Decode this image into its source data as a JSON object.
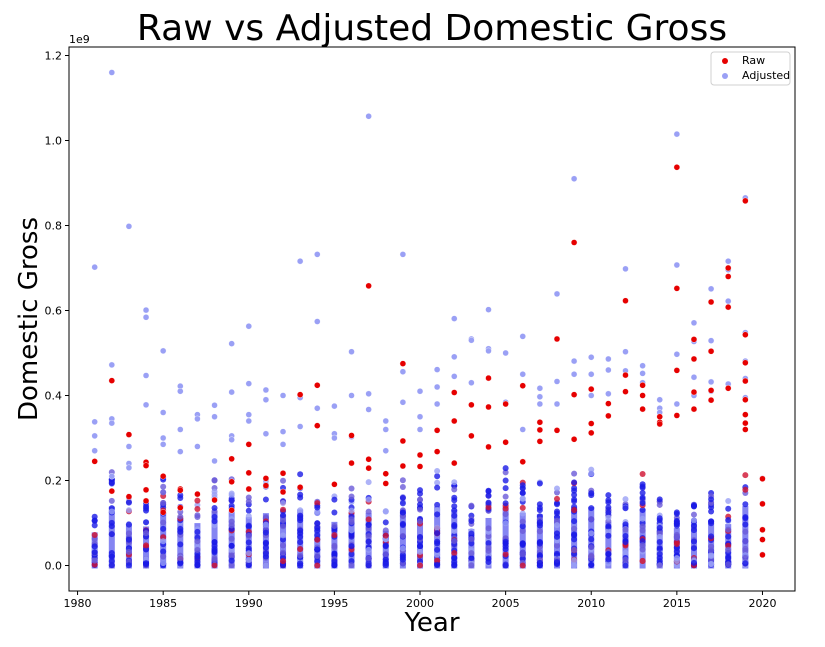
{
  "chart_data": {
    "type": "scatter",
    "title": "Raw vs Adjusted Domestic Gross",
    "xlabel": "Year",
    "ylabel": "Domestic Gross",
    "offset_text": "1e9",
    "xlim": [
      1979.5,
      2021.9
    ],
    "ylim": [
      -60000000,
      1220000000
    ],
    "x_ticks": [
      1980,
      1985,
      1990,
      1995,
      2000,
      2005,
      2010,
      2015,
      2020
    ],
    "x_tick_labels": [
      "1980",
      "1985",
      "1990",
      "1995",
      "2000",
      "2005",
      "2010",
      "2015",
      "2020"
    ],
    "y_ticks": [
      0,
      200000000,
      400000000,
      600000000,
      800000000,
      1000000000,
      1200000000
    ],
    "y_tick_labels": [
      "0.0",
      "0.2",
      "0.4",
      "0.6",
      "0.8",
      "1.0",
      "1.2"
    ],
    "grid": false,
    "legend_position": "top-right",
    "series": [
      {
        "name": "Raw",
        "color": "#e60000",
        "points": [
          [
            1981,
            245000000
          ],
          [
            1982,
            435000000
          ],
          [
            1982,
            175000000
          ],
          [
            1983,
            308000000
          ],
          [
            1983,
            162000000
          ],
          [
            1984,
            243000000
          ],
          [
            1984,
            235000000
          ],
          [
            1984,
            178000000
          ],
          [
            1984,
            152000000
          ],
          [
            1985,
            210000000
          ],
          [
            1985,
            125000000
          ],
          [
            1986,
            180000000
          ],
          [
            1986,
            177000000
          ],
          [
            1986,
            136000000
          ],
          [
            1987,
            168000000
          ],
          [
            1988,
            154000000
          ],
          [
            1989,
            251000000
          ],
          [
            1989,
            197000000
          ],
          [
            1989,
            130000000
          ],
          [
            1990,
            285000000
          ],
          [
            1990,
            218000000
          ],
          [
            1990,
            180000000
          ],
          [
            1991,
            205000000
          ],
          [
            1991,
            188000000
          ],
          [
            1992,
            217000000
          ],
          [
            1992,
            173000000
          ],
          [
            1993,
            402000000
          ],
          [
            1993,
            184000000
          ],
          [
            1994,
            424000000
          ],
          [
            1994,
            329000000
          ],
          [
            1995,
            191000000
          ],
          [
            1996,
            306000000
          ],
          [
            1996,
            241000000
          ],
          [
            1997,
            658000000
          ],
          [
            1997,
            250000000
          ],
          [
            1997,
            229000000
          ],
          [
            1998,
            216000000
          ],
          [
            1998,
            193000000
          ],
          [
            1999,
            475000000
          ],
          [
            1999,
            293000000
          ],
          [
            1999,
            234000000
          ],
          [
            2000,
            260000000
          ],
          [
            2000,
            233000000
          ],
          [
            2001,
            318000000
          ],
          [
            2001,
            268000000
          ],
          [
            2002,
            407000000
          ],
          [
            2002,
            340000000
          ],
          [
            2002,
            241000000
          ],
          [
            2003,
            378000000
          ],
          [
            2003,
            305000000
          ],
          [
            2004,
            441000000
          ],
          [
            2004,
            373000000
          ],
          [
            2004,
            279000000
          ],
          [
            2005,
            380000000
          ],
          [
            2005,
            290000000
          ],
          [
            2006,
            423000000
          ],
          [
            2006,
            244000000
          ],
          [
            2007,
            337000000
          ],
          [
            2007,
            319000000
          ],
          [
            2007,
            292000000
          ],
          [
            2008,
            533000000
          ],
          [
            2008,
            318000000
          ],
          [
            2009,
            760000000
          ],
          [
            2009,
            402000000
          ],
          [
            2009,
            297000000
          ],
          [
            2010,
            415000000
          ],
          [
            2010,
            334000000
          ],
          [
            2010,
            312000000
          ],
          [
            2011,
            381000000
          ],
          [
            2011,
            352000000
          ],
          [
            2012,
            623000000
          ],
          [
            2012,
            448000000
          ],
          [
            2012,
            409000000
          ],
          [
            2013,
            424000000
          ],
          [
            2013,
            400000000
          ],
          [
            2013,
            368000000
          ],
          [
            2014,
            350000000
          ],
          [
            2014,
            337000000
          ],
          [
            2014,
            333000000
          ],
          [
            2015,
            937000000
          ],
          [
            2015,
            652000000
          ],
          [
            2015,
            459000000
          ],
          [
            2015,
            353000000
          ],
          [
            2016,
            532000000
          ],
          [
            2016,
            486000000
          ],
          [
            2016,
            408000000
          ],
          [
            2016,
            368000000
          ],
          [
            2017,
            620000000
          ],
          [
            2017,
            504000000
          ],
          [
            2017,
            412000000
          ],
          [
            2017,
            389000000
          ],
          [
            2018,
            700000000
          ],
          [
            2018,
            680000000
          ],
          [
            2018,
            608000000
          ],
          [
            2018,
            417000000
          ],
          [
            2019,
            858000000
          ],
          [
            2019,
            543000000
          ],
          [
            2019,
            477000000
          ],
          [
            2019,
            434000000
          ],
          [
            2019,
            390000000
          ],
          [
            2019,
            355000000
          ],
          [
            2019,
            335000000
          ],
          [
            2019,
            320000000
          ],
          [
            2020,
            204000000
          ],
          [
            2020,
            145000000
          ],
          [
            2020,
            84000000
          ],
          [
            2020,
            61000000
          ],
          [
            2020,
            25000000
          ]
        ]
      },
      {
        "name": "Adjusted",
        "color": "#9aa0f5",
        "points": [
          [
            1981,
            702000000
          ],
          [
            1981,
            338000000
          ],
          [
            1981,
            305000000
          ],
          [
            1981,
            270000000
          ],
          [
            1982,
            1160000000
          ],
          [
            1982,
            472000000
          ],
          [
            1982,
            345000000
          ],
          [
            1982,
            335000000
          ],
          [
            1982,
            210000000
          ],
          [
            1983,
            798000000
          ],
          [
            1983,
            280000000
          ],
          [
            1983,
            240000000
          ],
          [
            1983,
            230000000
          ],
          [
            1984,
            601000000
          ],
          [
            1984,
            584000000
          ],
          [
            1984,
            447000000
          ],
          [
            1984,
            378000000
          ],
          [
            1985,
            505000000
          ],
          [
            1985,
            360000000
          ],
          [
            1985,
            300000000
          ],
          [
            1985,
            285000000
          ],
          [
            1986,
            422000000
          ],
          [
            1986,
            410000000
          ],
          [
            1986,
            320000000
          ],
          [
            1986,
            268000000
          ],
          [
            1987,
            355000000
          ],
          [
            1987,
            345000000
          ],
          [
            1987,
            280000000
          ],
          [
            1988,
            377000000
          ],
          [
            1988,
            350000000
          ],
          [
            1988,
            246000000
          ],
          [
            1989,
            522000000
          ],
          [
            1989,
            408000000
          ],
          [
            1989,
            305000000
          ],
          [
            1989,
            296000000
          ],
          [
            1990,
            563000000
          ],
          [
            1990,
            428000000
          ],
          [
            1990,
            355000000
          ],
          [
            1990,
            340000000
          ],
          [
            1991,
            413000000
          ],
          [
            1991,
            390000000
          ],
          [
            1991,
            310000000
          ],
          [
            1992,
            400000000
          ],
          [
            1992,
            315000000
          ],
          [
            1992,
            285000000
          ],
          [
            1993,
            716000000
          ],
          [
            1993,
            395000000
          ],
          [
            1993,
            327000000
          ],
          [
            1994,
            732000000
          ],
          [
            1994,
            574000000
          ],
          [
            1994,
            370000000
          ],
          [
            1995,
            375000000
          ],
          [
            1995,
            310000000
          ],
          [
            1995,
            300000000
          ],
          [
            1996,
            503000000
          ],
          [
            1996,
            400000000
          ],
          [
            1996,
            303000000
          ],
          [
            1997,
            1057000000
          ],
          [
            1997,
            404000000
          ],
          [
            1997,
            367000000
          ],
          [
            1998,
            340000000
          ],
          [
            1998,
            320000000
          ],
          [
            1998,
            270000000
          ],
          [
            1999,
            732000000
          ],
          [
            1999,
            456000000
          ],
          [
            1999,
            384000000
          ],
          [
            2000,
            410000000
          ],
          [
            2000,
            350000000
          ],
          [
            2000,
            320000000
          ],
          [
            2001,
            461000000
          ],
          [
            2001,
            420000000
          ],
          [
            2001,
            380000000
          ],
          [
            2002,
            581000000
          ],
          [
            2002,
            491000000
          ],
          [
            2002,
            445000000
          ],
          [
            2003,
            533000000
          ],
          [
            2003,
            530000000
          ],
          [
            2003,
            430000000
          ],
          [
            2004,
            602000000
          ],
          [
            2004,
            510000000
          ],
          [
            2004,
            505000000
          ],
          [
            2005,
            500000000
          ],
          [
            2005,
            384000000
          ],
          [
            2005,
            380000000
          ],
          [
            2006,
            539000000
          ],
          [
            2006,
            450000000
          ],
          [
            2006,
            320000000
          ],
          [
            2007,
            417000000
          ],
          [
            2007,
            397000000
          ],
          [
            2007,
            380000000
          ],
          [
            2008,
            639000000
          ],
          [
            2008,
            433000000
          ],
          [
            2008,
            380000000
          ],
          [
            2009,
            910000000
          ],
          [
            2009,
            481000000
          ],
          [
            2009,
            450000000
          ],
          [
            2010,
            490000000
          ],
          [
            2010,
            450000000
          ],
          [
            2010,
            400000000
          ],
          [
            2011,
            486000000
          ],
          [
            2011,
            460000000
          ],
          [
            2011,
            404000000
          ],
          [
            2012,
            698000000
          ],
          [
            2012,
            503000000
          ],
          [
            2012,
            458000000
          ],
          [
            2013,
            470000000
          ],
          [
            2013,
            452000000
          ],
          [
            2013,
            430000000
          ],
          [
            2014,
            390000000
          ],
          [
            2014,
            370000000
          ],
          [
            2014,
            360000000
          ],
          [
            2015,
            1015000000
          ],
          [
            2015,
            707000000
          ],
          [
            2015,
            497000000
          ],
          [
            2015,
            380000000
          ],
          [
            2016,
            571000000
          ],
          [
            2016,
            527000000
          ],
          [
            2016,
            443000000
          ],
          [
            2016,
            400000000
          ],
          [
            2017,
            651000000
          ],
          [
            2017,
            529000000
          ],
          [
            2017,
            432000000
          ],
          [
            2017,
            410000000
          ],
          [
            2018,
            716000000
          ],
          [
            2018,
            696000000
          ],
          [
            2018,
            622000000
          ],
          [
            2018,
            427000000
          ],
          [
            2019,
            865000000
          ],
          [
            2019,
            548000000
          ],
          [
            2019,
            481000000
          ],
          [
            2019,
            440000000
          ],
          [
            2019,
            395000000
          ],
          [
            2019,
            355000000
          ],
          [
            2020,
            205000000
          ],
          [
            2020,
            146000000
          ],
          [
            2020,
            84000000
          ],
          [
            2020,
            62000000
          ],
          [
            2020,
            26000000
          ]
        ]
      }
    ]
  }
}
